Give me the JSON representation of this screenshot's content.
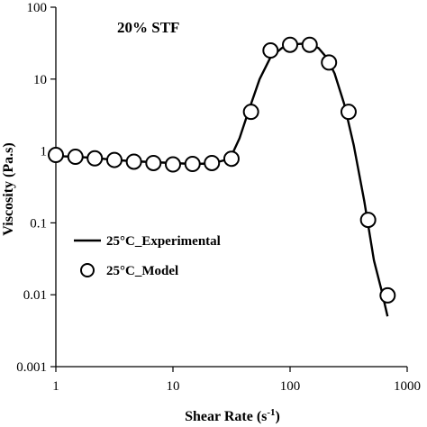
{
  "chart_data": {
    "type": "scatter",
    "title": "20% STF",
    "xlabel": "Shear Rate (s",
    "xlabel_sup": "-1",
    "xlabel_end": ")",
    "ylabel": "Viscosity (Pa.s)",
    "xscale": "log",
    "yscale": "log",
    "xlim": [
      1,
      1000
    ],
    "ylim": [
      0.001,
      100
    ],
    "x_ticks": [
      1,
      10,
      100,
      1000
    ],
    "x_tick_labels": [
      "1",
      "10",
      "100",
      "1000"
    ],
    "y_ticks": [
      0.001,
      0.01,
      0.1,
      1,
      10,
      100
    ],
    "y_tick_labels": [
      "0.001",
      "0.01",
      "0.1",
      "1",
      "10",
      "100"
    ],
    "grid": false,
    "legend_position": "bottom-left",
    "series": [
      {
        "name": "25°C_Experimental",
        "style": "line",
        "color": "#000000",
        "x": [
          1,
          1.47,
          2.15,
          3.16,
          4.64,
          6.81,
          10,
          14.7,
          21.5,
          28,
          32,
          37,
          44,
          55,
          68,
          85,
          100,
          125,
          150,
          175,
          205,
          240,
          290,
          350,
          430,
          520,
          600,
          680
        ],
        "y": [
          0.85,
          0.83,
          0.8,
          0.75,
          0.72,
          0.7,
          0.68,
          0.66,
          0.67,
          0.75,
          0.9,
          1.5,
          3.5,
          10,
          20,
          27,
          30,
          31,
          30,
          27,
          20,
          12,
          4.5,
          1.2,
          0.2,
          0.03,
          0.012,
          0.005
        ]
      },
      {
        "name": "25°C_Model",
        "style": "marker",
        "marker": "open-circle",
        "color": "#000000",
        "x": [
          1,
          1.47,
          2.15,
          3.16,
          4.64,
          6.81,
          10,
          14.7,
          21.5,
          31.6,
          46.4,
          68.1,
          100,
          147,
          215,
          316,
          464,
          681
        ],
        "y": [
          0.88,
          0.83,
          0.79,
          0.75,
          0.71,
          0.68,
          0.65,
          0.66,
          0.68,
          0.78,
          3.5,
          25,
          30,
          30,
          17,
          3.5,
          0.11,
          0.0098
        ]
      }
    ]
  }
}
